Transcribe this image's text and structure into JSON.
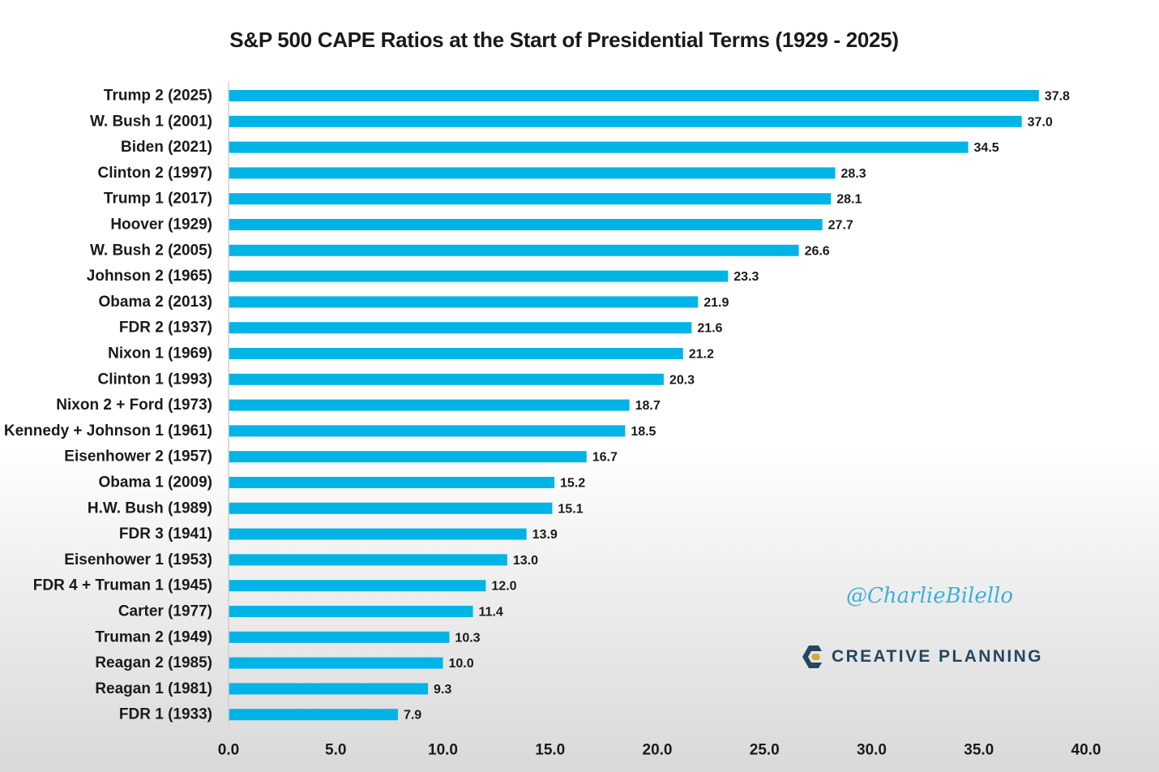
{
  "chart_data": {
    "type": "bar",
    "orientation": "horizontal",
    "title": "S&P 500 CAPE Ratios at the Start of Presidential Terms (1929 - 2025)",
    "categories": [
      "Trump 2 (2025)",
      "W. Bush 1 (2001)",
      "Biden (2021)",
      "Clinton 2 (1997)",
      "Trump 1 (2017)",
      "Hoover (1929)",
      "W. Bush 2 (2005)",
      "Johnson 2 (1965)",
      "Obama 2 (2013)",
      "FDR 2 (1937)",
      "Nixon 1 (1969)",
      "Clinton 1 (1993)",
      "Nixon 2 + Ford (1973)",
      "Kennedy + Johnson 1 (1961)",
      "Eisenhower 2 (1957)",
      "Obama 1 (2009)",
      "H.W. Bush (1989)",
      "FDR 3 (1941)",
      "Eisenhower 1 (1953)",
      "FDR 4 + Truman 1 (1945)",
      "Carter (1977)",
      "Truman 2 (1949)",
      "Reagan 2 (1985)",
      "Reagan 1 (1981)",
      "FDR 1 (1933)"
    ],
    "values": [
      37.8,
      37.0,
      34.5,
      28.3,
      28.1,
      27.7,
      26.6,
      23.3,
      21.9,
      21.6,
      21.2,
      20.3,
      18.7,
      18.5,
      16.7,
      15.2,
      15.1,
      13.9,
      13.0,
      12.0,
      11.4,
      10.3,
      10.0,
      9.3,
      7.9
    ],
    "value_labels": [
      "37.8",
      "37.0",
      "34.5",
      "28.3",
      "28.1",
      "27.7",
      "26.6",
      "23.3",
      "21.9",
      "21.6",
      "21.2",
      "20.3",
      "18.7",
      "18.5",
      "16.7",
      "15.2",
      "15.1",
      "13.9",
      "13.0",
      "12.0",
      "11.4",
      "10.3",
      "10.0",
      "9.3",
      "7.9"
    ],
    "xlim": [
      0,
      40
    ],
    "x_ticks": [
      0,
      5,
      10,
      15,
      20,
      25,
      30,
      35,
      40
    ],
    "x_tick_labels": [
      "0.0",
      "5.0",
      "10.0",
      "15.0",
      "20.0",
      "25.0",
      "30.0",
      "35.0",
      "40.0"
    ],
    "xlabel": "",
    "ylabel": "",
    "grid": false,
    "legend": "none",
    "bar_color": "#00b4e6"
  },
  "watermark": {
    "handle": "@CharlieBilello",
    "brand": "CREATIVE PLANNING",
    "brand_color": "#23475f",
    "handle_color": "#3fb0d4"
  }
}
